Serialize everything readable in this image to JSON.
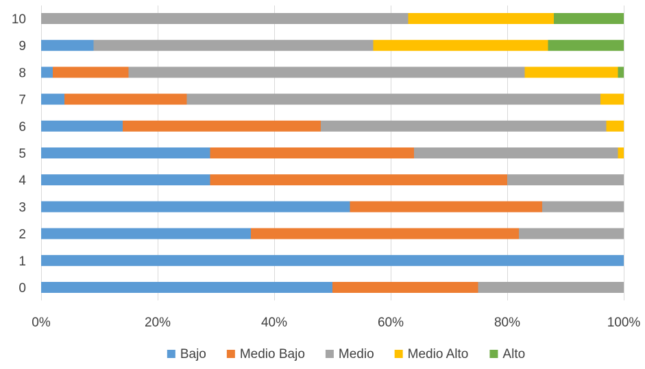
{
  "chart_data": {
    "type": "bar",
    "orientation": "horizontal",
    "stacked": "percent",
    "categories": [
      "0",
      "1",
      "2",
      "3",
      "4",
      "5",
      "6",
      "7",
      "8",
      "9",
      "10"
    ],
    "series": [
      {
        "name": "Bajo",
        "color": "#5b9bd5",
        "values": [
          50,
          100,
          36,
          53,
          29,
          29,
          14,
          4,
          2,
          9,
          0
        ]
      },
      {
        "name": "Medio Bajo",
        "color": "#ed7d31",
        "values": [
          25,
          0,
          46,
          33,
          51,
          35,
          34,
          21,
          13,
          0,
          0
        ]
      },
      {
        "name": "Medio",
        "color": "#a5a5a5",
        "values": [
          25,
          0,
          18,
          14,
          20,
          35,
          49,
          71,
          68,
          48,
          63
        ]
      },
      {
        "name": "Medio Alto",
        "color": "#ffc000",
        "values": [
          0,
          0,
          0,
          0,
          0,
          1,
          3,
          4,
          16,
          30,
          25
        ]
      },
      {
        "name": "Alto",
        "color": "#70ad47",
        "values": [
          0,
          0,
          0,
          0,
          0,
          0,
          0,
          0,
          1,
          13,
          12
        ]
      }
    ],
    "x_ticks": [
      "0%",
      "20%",
      "40%",
      "60%",
      "80%",
      "100%"
    ],
    "xlim": [
      0,
      100
    ],
    "grid": true,
    "legend_position": "bottom",
    "title": "",
    "xlabel": "",
    "ylabel": ""
  }
}
